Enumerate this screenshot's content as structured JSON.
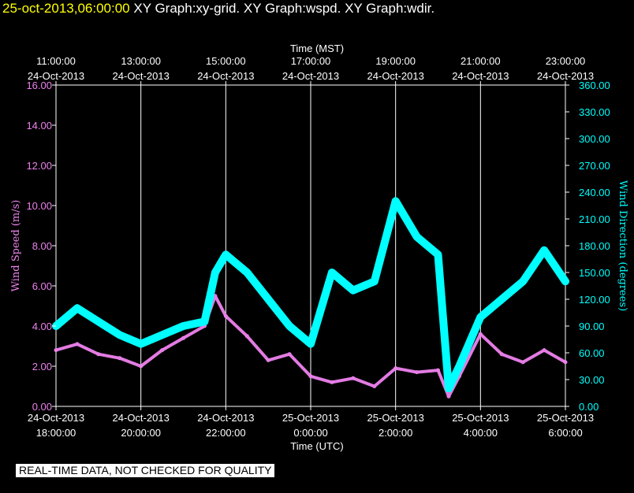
{
  "header": {
    "timestamp": "25-oct-2013,06:00:00",
    "graphs": "XY Graph:xy-grid.  XY Graph:wspd.  XY Graph:wdir."
  },
  "notice": "REAL-TIME DATA, NOT CHECKED FOR QUALITY",
  "colors": {
    "wspd": "#ee82ee",
    "wdir": "#00ffff",
    "grid": "#ffffff",
    "background": "#000000",
    "title": "#ffff00"
  },
  "chart_data": {
    "type": "line",
    "top_axis": {
      "label": "Time (MST)",
      "ticks": [
        {
          "time": "11:00:00",
          "date": "24-Oct-2013"
        },
        {
          "time": "13:00:00",
          "date": "24-Oct-2013"
        },
        {
          "time": "15:00:00",
          "date": "24-Oct-2013"
        },
        {
          "time": "17:00:00",
          "date": "24-Oct-2013"
        },
        {
          "time": "19:00:00",
          "date": "24-Oct-2013"
        },
        {
          "time": "21:00:00",
          "date": "24-Oct-2013"
        },
        {
          "time": "23:00:00",
          "date": "24-Oct-2013"
        }
      ]
    },
    "bottom_axis": {
      "label": "Time (UTC)",
      "ticks": [
        {
          "date": "24-Oct-2013",
          "time": "18:00:00"
        },
        {
          "date": "24-Oct-2013",
          "time": "20:00:00"
        },
        {
          "date": "24-Oct-2013",
          "time": "22:00:00"
        },
        {
          "date": "25-Oct-2013",
          "time": "0:00:00"
        },
        {
          "date": "25-Oct-2013",
          "time": "2:00:00"
        },
        {
          "date": "25-Oct-2013",
          "time": "4:00:00"
        },
        {
          "date": "25-Oct-2013",
          "time": "6:00:00"
        }
      ],
      "xlim": [
        "24-Oct-2013 18:00:00",
        "25-Oct-2013 06:00:00"
      ]
    },
    "left_axis": {
      "label": "Wind Speed (m/s)",
      "ylim": [
        0,
        16
      ],
      "ticks": [
        "0.00",
        "2.00",
        "4.00",
        "6.00",
        "8.00",
        "10.00",
        "12.00",
        "14.00",
        "16.00"
      ]
    },
    "right_axis": {
      "label": "Wind Direction (degrees)",
      "ylim": [
        0,
        360
      ],
      "ticks": [
        "0.00",
        "30.00",
        "60.00",
        "90.00",
        "120.00",
        "150.00",
        "180.00",
        "210.00",
        "240.00",
        "270.00",
        "300.00",
        "330.00",
        "360.00"
      ]
    },
    "grid": "vertical",
    "series": [
      {
        "name": "Wind Speed",
        "axis": "left",
        "x": [
          "24-Oct-2013 18:00",
          "24-Oct-2013 18:30",
          "24-Oct-2013 19:00",
          "24-Oct-2013 19:30",
          "24-Oct-2013 20:00",
          "24-Oct-2013 20:30",
          "24-Oct-2013 21:00",
          "24-Oct-2013 21:30",
          "24-Oct-2013 21:45",
          "24-Oct-2013 22:00",
          "24-Oct-2013 22:30",
          "24-Oct-2013 23:00",
          "24-Oct-2013 23:30",
          "25-Oct-2013 00:00",
          "25-Oct-2013 00:30",
          "25-Oct-2013 01:00",
          "25-Oct-2013 01:30",
          "25-Oct-2013 02:00",
          "25-Oct-2013 02:30",
          "25-Oct-2013 03:00",
          "25-Oct-2013 03:15",
          "25-Oct-2013 03:30",
          "25-Oct-2013 04:00",
          "25-Oct-2013 04:30",
          "25-Oct-2013 05:00",
          "25-Oct-2013 05:30",
          "25-Oct-2013 06:00"
        ],
        "values": [
          2.8,
          3.1,
          2.6,
          2.4,
          2.0,
          2.8,
          3.4,
          4.0,
          5.5,
          4.5,
          3.5,
          2.3,
          2.6,
          1.5,
          1.2,
          1.4,
          1.0,
          1.9,
          1.7,
          1.8,
          0.5,
          1.5,
          3.6,
          2.6,
          2.2,
          2.8,
          2.2
        ]
      },
      {
        "name": "Wind Direction",
        "axis": "right",
        "x": [
          "24-Oct-2013 18:00",
          "24-Oct-2013 18:30",
          "24-Oct-2013 19:00",
          "24-Oct-2013 19:30",
          "24-Oct-2013 20:00",
          "24-Oct-2013 20:30",
          "24-Oct-2013 21:00",
          "24-Oct-2013 21:30",
          "24-Oct-2013 21:45",
          "24-Oct-2013 22:00",
          "24-Oct-2013 22:30",
          "24-Oct-2013 23:00",
          "24-Oct-2013 23:30",
          "25-Oct-2013 00:00",
          "25-Oct-2013 00:30",
          "25-Oct-2013 01:00",
          "25-Oct-2013 01:30",
          "25-Oct-2013 02:00",
          "25-Oct-2013 02:30",
          "25-Oct-2013 03:00",
          "25-Oct-2013 03:15",
          "25-Oct-2013 03:30",
          "25-Oct-2013 04:00",
          "25-Oct-2013 04:30",
          "25-Oct-2013 05:00",
          "25-Oct-2013 05:30",
          "25-Oct-2013 06:00"
        ],
        "values": [
          90,
          110,
          95,
          80,
          70,
          80,
          90,
          95,
          150,
          170,
          150,
          120,
          90,
          70,
          150,
          130,
          140,
          230,
          190,
          170,
          20,
          45,
          100,
          120,
          140,
          175,
          140
        ]
      }
    ]
  }
}
